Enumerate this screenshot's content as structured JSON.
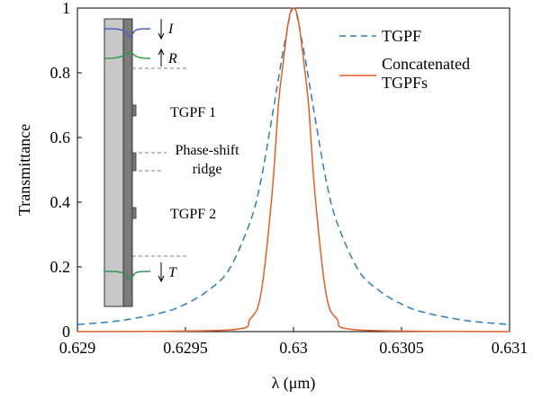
{
  "chart_data": {
    "type": "line",
    "xlabel": "λ (μm)",
    "ylabel": "Transmittance",
    "xlim": [
      0.629,
      0.631
    ],
    "ylim": [
      0,
      1
    ],
    "xticks": [
      "0.629",
      "0.6295",
      "0.63",
      "0.6305",
      "0.631"
    ],
    "xtick_values": [
      0.629,
      0.6295,
      0.63,
      0.6305,
      0.631
    ],
    "yticks": [
      "0",
      "0.2",
      "0.4",
      "0.6",
      "0.8",
      "1"
    ],
    "ytick_values": [
      0,
      0.2,
      0.4,
      0.6,
      0.8,
      1
    ],
    "grid": false,
    "legend_position": "top-right",
    "series": [
      {
        "name": "TGPF",
        "color": "#2e7eb8",
        "style": "dashed",
        "x": [
          0.629,
          0.6292,
          0.6294,
          0.6295,
          0.6296,
          0.6297,
          0.6298,
          0.62985,
          0.6299,
          0.62993,
          0.62995,
          0.62997,
          0.62998,
          0.62999,
          0.63,
          0.63001,
          0.63002,
          0.63003,
          0.63005,
          0.63007,
          0.6301,
          0.63015,
          0.6302,
          0.6303,
          0.6304,
          0.6305,
          0.6306,
          0.6308,
          0.631
        ],
        "y": [
          0.022,
          0.034,
          0.06,
          0.085,
          0.125,
          0.19,
          0.34,
          0.47,
          0.66,
          0.78,
          0.86,
          0.93,
          0.965,
          0.99,
          1.0,
          0.99,
          0.965,
          0.93,
          0.86,
          0.78,
          0.66,
          0.47,
          0.34,
          0.19,
          0.125,
          0.085,
          0.06,
          0.034,
          0.022
        ]
      },
      {
        "name": "Concatenated TGPFs",
        "color": "#e0602a",
        "style": "solid",
        "x": [
          0.629,
          0.6297,
          0.6298,
          0.62985,
          0.6299,
          0.62993,
          0.62995,
          0.62997,
          0.62998,
          0.62999,
          0.63,
          0.63001,
          0.63002,
          0.63003,
          0.63005,
          0.63007,
          0.6301,
          0.63015,
          0.6302,
          0.6303,
          0.631
        ],
        "y": [
          0.0,
          0.005,
          0.04,
          0.12,
          0.42,
          0.7,
          0.82,
          0.93,
          0.97,
          0.995,
          1.0,
          0.995,
          0.97,
          0.93,
          0.82,
          0.7,
          0.42,
          0.12,
          0.04,
          0.005,
          0.0
        ]
      }
    ],
    "legend": [
      {
        "label": "TGPF",
        "style": "dashed",
        "color": "#2e7eb8"
      },
      {
        "label": "Concatenated\nTGPFs",
        "style": "solid",
        "color": "#e0602a"
      }
    ],
    "inset": {
      "labels": {
        "I": "I",
        "R": "R",
        "T": "T",
        "tgpf1": "TGPF 1",
        "phase_shift": "Phase-shift",
        "ridge": "ridge",
        "tgpf2": "TGPF 2"
      }
    }
  }
}
